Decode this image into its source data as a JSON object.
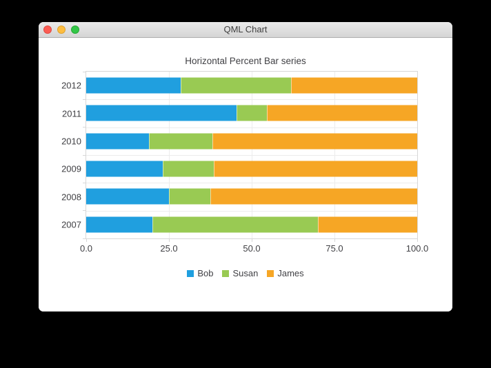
{
  "window": {
    "title": "QML Chart"
  },
  "chart_data": {
    "type": "bar",
    "orientation": "horizontal",
    "stacking": "percent",
    "title": "Horizontal Percent Bar series",
    "categories": [
      "2007",
      "2008",
      "2009",
      "2010",
      "2011",
      "2012"
    ],
    "display_order_top_to_bottom": [
      "2012",
      "2011",
      "2010",
      "2009",
      "2008",
      "2007"
    ],
    "series": [
      {
        "name": "Bob",
        "color": "#209fdf",
        "values": [
          2,
          2,
          3,
          4,
          5,
          6
        ]
      },
      {
        "name": "Susan",
        "color": "#99ca53",
        "values": [
          5,
          1,
          2,
          4,
          1,
          7
        ]
      },
      {
        "name": "James",
        "color": "#f6a625",
        "values": [
          3,
          5,
          8,
          13,
          5,
          8
        ]
      }
    ],
    "percentages_by_category": {
      "2007": [
        20.0,
        50.0,
        30.0
      ],
      "2008": [
        25.0,
        12.5,
        62.5
      ],
      "2009": [
        23.08,
        15.38,
        61.54
      ],
      "2010": [
        19.05,
        19.05,
        61.9
      ],
      "2011": [
        45.45,
        9.09,
        45.45
      ],
      "2012": [
        28.57,
        33.33,
        38.1
      ]
    },
    "xlim": [
      0,
      100
    ],
    "x_ticks": [
      "0.0",
      "25.0",
      "50.0",
      "75.0",
      "100.0"
    ],
    "xlabel": "",
    "ylabel": "",
    "grid": true,
    "legend_position": "bottom"
  },
  "theme": {
    "series_colors": [
      "#209fdf",
      "#99ca53",
      "#f6a625"
    ],
    "chart_text_color": "#404044",
    "grid_color": "#ececec",
    "frame_color": "#d7d7d7",
    "titlebar_text_color": "#3d3d3d",
    "traffic_red": "#fc5d54",
    "traffic_yellow": "#fdbd40",
    "traffic_green": "#33c748"
  }
}
